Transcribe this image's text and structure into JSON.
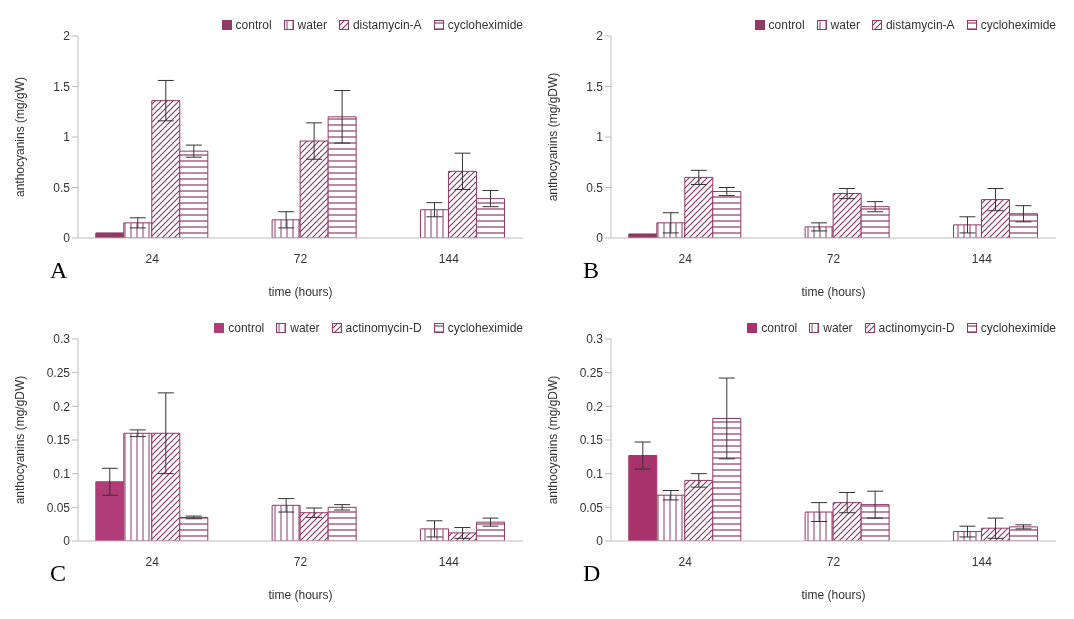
{
  "chart_data": [
    {
      "type": "bar",
      "categories": [
        "24",
        "72",
        "144"
      ],
      "xlabel": "time (hours)",
      "ylabel": "anthocyanins (mg/gW)",
      "ylim": [
        0,
        2
      ],
      "yticks": [
        0,
        {
          "value": 0.5,
          "label": "0.5"
        },
        1,
        {
          "value": 1.5,
          "label": "1.5"
        },
        2
      ],
      "legend": "top right",
      "grid": false,
      "annotations": [
        "A"
      ],
      "series": [
        {
          "name": "control",
          "color": "#8e3a63",
          "values": [
            0.05,
            null,
            null
          ]
        },
        {
          "name": "water",
          "color": "#8e3a63",
          "values": [
            0.15,
            0.18,
            0.28
          ],
          "errors": [
            0.05,
            0.08,
            0.07
          ]
        },
        {
          "name": "distamycin-A",
          "color": "#8e3a63",
          "values": [
            1.36,
            0.96,
            0.66
          ],
          "errors": [
            0.2,
            0.18,
            0.18
          ]
        },
        {
          "name": "cycloheximide",
          "color": "#8e3a63",
          "values": [
            0.86,
            1.2,
            0.39
          ],
          "errors": [
            0.06,
            0.26,
            0.08
          ]
        }
      ]
    },
    {
      "type": "bar",
      "categories": [
        "24",
        "72",
        "144"
      ],
      "xlabel": "time (hours)",
      "ylabel": "anthocyanins (mg/gDW)",
      "ylim": [
        0,
        2
      ],
      "yticks": [
        0,
        {
          "value": 0.5,
          "label": "0.5"
        },
        1,
        {
          "value": 1.5,
          "label": "1.5"
        },
        2
      ],
      "legend": "top right",
      "grid": false,
      "annotations": [
        "B"
      ],
      "series": [
        {
          "name": "control",
          "color": "#8e3a63",
          "values": [
            0.04,
            null,
            null
          ]
        },
        {
          "name": "water",
          "color": "#8e3a63",
          "values": [
            0.15,
            0.11,
            0.13
          ],
          "errors": [
            0.1,
            0.04,
            0.08
          ]
        },
        {
          "name": "distamycin-A",
          "color": "#8e3a63",
          "values": [
            0.6,
            0.44,
            0.38
          ],
          "errors": [
            0.07,
            0.05,
            0.11
          ]
        },
        {
          "name": "cycloheximide",
          "color": "#8e3a63",
          "values": [
            0.46,
            0.31,
            0.24
          ],
          "errors": [
            0.04,
            0.05,
            0.08
          ]
        }
      ]
    },
    {
      "type": "bar",
      "categories": [
        "24",
        "72",
        "144"
      ],
      "xlabel": "time (hours)",
      "ylabel": "anthocyanins (mg/gDW)",
      "ylim": [
        0,
        0.3
      ],
      "yticks": [
        0,
        {
          "value": 0.05,
          "label": "0.05"
        },
        {
          "value": 0.1,
          "label": "0.1"
        },
        {
          "value": 0.15,
          "label": "0.15"
        },
        {
          "value": 0.2,
          "label": "0.2"
        },
        {
          "value": 0.25,
          "label": "0.25"
        },
        {
          "value": 0.3,
          "label": "0.3"
        }
      ],
      "legend": "top right",
      "grid": false,
      "annotations": [
        "C"
      ],
      "series": [
        {
          "name": "control",
          "color": "#b03c78",
          "values": [
            0.088,
            null,
            null
          ],
          "errors": [
            0.02,
            null,
            null
          ]
        },
        {
          "name": "water",
          "color": "#8e3a63",
          "values": [
            0.16,
            0.053,
            0.018
          ],
          "errors": [
            0.005,
            0.01,
            0.012
          ]
        },
        {
          "name": "actinomycin-D",
          "color": "#8e3a63",
          "values": [
            0.16,
            0.042,
            0.012
          ],
          "errors": [
            0.06,
            0.007,
            0.008
          ]
        },
        {
          "name": "cycloheximide",
          "color": "#8e3a63",
          "values": [
            0.035,
            0.05,
            0.028
          ],
          "errors": [
            0.002,
            0.004,
            0.006
          ]
        }
      ]
    },
    {
      "type": "bar",
      "categories": [
        "24",
        "72",
        "144"
      ],
      "xlabel": "time (hours)",
      "ylabel": "anthocyanins (mg/gDW)",
      "ylim": [
        0,
        0.3
      ],
      "yticks": [
        0,
        {
          "value": 0.05,
          "label": "0.05"
        },
        {
          "value": 0.1,
          "label": "0.1"
        },
        {
          "value": 0.15,
          "label": "0.15"
        },
        {
          "value": 0.2,
          "label": "0.2"
        },
        {
          "value": 0.25,
          "label": "0.25"
        },
        {
          "value": 0.3,
          "label": "0.3"
        }
      ],
      "legend": "top right",
      "grid": false,
      "annotations": [
        "D"
      ],
      "series": [
        {
          "name": "control",
          "color": "#a8336c",
          "values": [
            0.127,
            null,
            null
          ],
          "errors": [
            0.02,
            null,
            null
          ]
        },
        {
          "name": "water",
          "color": "#8e3a63",
          "values": [
            0.068,
            0.043,
            0.014
          ],
          "errors": [
            0.007,
            0.014,
            0.008
          ]
        },
        {
          "name": "actinomycin-D",
          "color": "#8e3a63",
          "values": [
            0.09,
            0.057,
            0.019
          ],
          "errors": [
            0.01,
            0.015,
            0.015
          ]
        },
        {
          "name": "cycloheximide",
          "color": "#8e3a63",
          "values": [
            0.182,
            0.054,
            0.021
          ],
          "errors": [
            0.06,
            0.02,
            0.003
          ]
        }
      ]
    }
  ]
}
